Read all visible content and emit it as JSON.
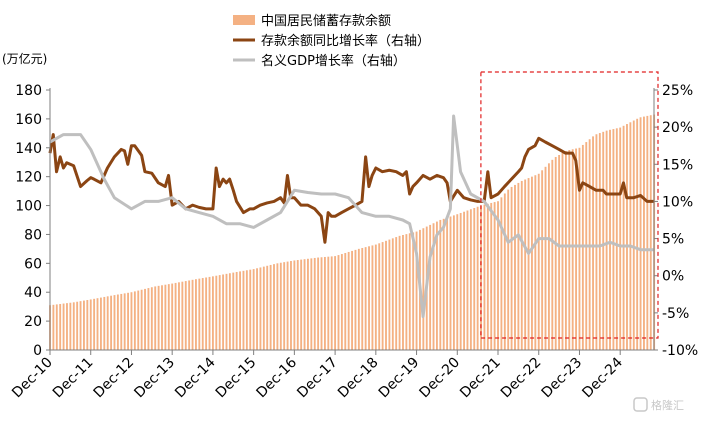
{
  "chart_data": {
    "type": "bar+line",
    "unit_left": "(万亿元)",
    "left_ticks": [
      0,
      20,
      40,
      60,
      80,
      100,
      120,
      140,
      160,
      180
    ],
    "right_ticks": [
      "-10%",
      "-5%",
      "0%",
      "5%",
      "10%",
      "15%",
      "20%",
      "25%"
    ],
    "right_tick_values": [
      -10,
      -5,
      0,
      5,
      10,
      15,
      20,
      25
    ],
    "ylim_left": [
      0,
      180
    ],
    "ylim_right": [
      -10,
      25
    ],
    "x_ticks": [
      "Dec-10",
      "Dec-11",
      "Dec-12",
      "Dec-13",
      "Dec-14",
      "Dec-15",
      "Dec-16",
      "Dec-17",
      "Dec-18",
      "Dec-19",
      "Dec-20",
      "Dec-21",
      "Dec-22",
      "Dec-23",
      "Dec-24"
    ],
    "x_range": [
      2010.92,
      2025.75
    ],
    "highlight_region": {
      "x_from": 2021.5,
      "x_to": 2025.75,
      "style": "red-dashed-box"
    },
    "legend_position": "top-center",
    "series": [
      {
        "name": "中国居民储蓄存款余额",
        "kind": "bar",
        "axis": "left",
        "color": "#f4b183",
        "points": [
          [
            2010.92,
            31
          ],
          [
            2011.5,
            33
          ],
          [
            2011.92,
            35
          ],
          [
            2012.5,
            38
          ],
          [
            2012.92,
            40
          ],
          [
            2013.5,
            44
          ],
          [
            2013.92,
            46
          ],
          [
            2014.5,
            49
          ],
          [
            2014.92,
            51
          ],
          [
            2015.5,
            54
          ],
          [
            2015.92,
            56
          ],
          [
            2016.5,
            60
          ],
          [
            2016.92,
            62
          ],
          [
            2017.5,
            64
          ],
          [
            2017.92,
            65
          ],
          [
            2018.5,
            70
          ],
          [
            2018.92,
            73
          ],
          [
            2019.5,
            79
          ],
          [
            2019.92,
            82
          ],
          [
            2020.5,
            90
          ],
          [
            2020.92,
            94
          ],
          [
            2021.5,
            100
          ],
          [
            2021.92,
            103
          ],
          [
            2022.2,
            112
          ],
          [
            2022.5,
            117
          ],
          [
            2022.92,
            122
          ],
          [
            2023.3,
            133
          ],
          [
            2023.6,
            138
          ],
          [
            2023.92,
            140
          ],
          [
            2024.3,
            149
          ],
          [
            2024.6,
            152
          ],
          [
            2024.92,
            154
          ],
          [
            2025.4,
            161
          ],
          [
            2025.75,
            163
          ]
        ]
      },
      {
        "name": "存款余额同比增长率（右轴）",
        "kind": "line",
        "axis": "right",
        "color": "#8b4513",
        "points": [
          [
            2010.92,
            16.5
          ],
          [
            2011.0,
            19.0
          ],
          [
            2011.08,
            14.0
          ],
          [
            2011.17,
            16.0
          ],
          [
            2011.25,
            14.5
          ],
          [
            2011.33,
            15.2
          ],
          [
            2011.5,
            14.8
          ],
          [
            2011.67,
            12.0
          ],
          [
            2011.83,
            12.8
          ],
          [
            2011.92,
            13.2
          ],
          [
            2012.0,
            13.0
          ],
          [
            2012.17,
            12.5
          ],
          [
            2012.33,
            14.5
          ],
          [
            2012.5,
            16.0
          ],
          [
            2012.67,
            17.0
          ],
          [
            2012.75,
            16.8
          ],
          [
            2012.83,
            15.0
          ],
          [
            2012.92,
            17.5
          ],
          [
            2013.0,
            17.5
          ],
          [
            2013.17,
            16.2
          ],
          [
            2013.25,
            14.0
          ],
          [
            2013.42,
            13.8
          ],
          [
            2013.58,
            12.5
          ],
          [
            2013.75,
            12.0
          ],
          [
            2013.83,
            13.5
          ],
          [
            2013.92,
            9.5
          ],
          [
            2014.08,
            10.0
          ],
          [
            2014.25,
            9.0
          ],
          [
            2014.42,
            9.5
          ],
          [
            2014.58,
            9.2
          ],
          [
            2014.75,
            9.0
          ],
          [
            2014.92,
            9.0
          ],
          [
            2015.0,
            14.5
          ],
          [
            2015.08,
            12.0
          ],
          [
            2015.17,
            13.0
          ],
          [
            2015.25,
            12.5
          ],
          [
            2015.33,
            13.0
          ],
          [
            2015.42,
            11.5
          ],
          [
            2015.5,
            10.0
          ],
          [
            2015.67,
            8.5
          ],
          [
            2015.83,
            9.0
          ],
          [
            2015.92,
            9.0
          ],
          [
            2016.08,
            9.5
          ],
          [
            2016.25,
            9.8
          ],
          [
            2016.42,
            10.0
          ],
          [
            2016.58,
            10.5
          ],
          [
            2016.67,
            9.8
          ],
          [
            2016.75,
            13.5
          ],
          [
            2016.83,
            10.5
          ],
          [
            2016.92,
            10.5
          ],
          [
            2017.08,
            9.5
          ],
          [
            2017.25,
            9.5
          ],
          [
            2017.42,
            9.0
          ],
          [
            2017.58,
            8.0
          ],
          [
            2017.67,
            4.5
          ],
          [
            2017.75,
            8.5
          ],
          [
            2017.83,
            8.0
          ],
          [
            2017.92,
            8.0
          ],
          [
            2018.08,
            8.5
          ],
          [
            2018.25,
            9.0
          ],
          [
            2018.42,
            9.5
          ],
          [
            2018.58,
            10.0
          ],
          [
            2018.67,
            16.0
          ],
          [
            2018.75,
            12.0
          ],
          [
            2018.83,
            13.5
          ],
          [
            2018.92,
            14.5
          ],
          [
            2019.08,
            14.0
          ],
          [
            2019.25,
            14.2
          ],
          [
            2019.42,
            14.0
          ],
          [
            2019.58,
            13.5
          ],
          [
            2019.67,
            14.0
          ],
          [
            2019.75,
            11.0
          ],
          [
            2019.83,
            12.0
          ],
          [
            2019.92,
            12.5
          ],
          [
            2020.08,
            13.5
          ],
          [
            2020.25,
            13.0
          ],
          [
            2020.42,
            13.5
          ],
          [
            2020.58,
            13.2
          ],
          [
            2020.67,
            12.5
          ],
          [
            2020.75,
            10.0
          ],
          [
            2020.92,
            11.5
          ],
          [
            2021.08,
            10.5
          ],
          [
            2021.25,
            10.2
          ],
          [
            2021.42,
            10.0
          ],
          [
            2021.5,
            10.0
          ],
          [
            2021.58,
            10.0
          ],
          [
            2021.67,
            14.0
          ],
          [
            2021.75,
            10.5
          ],
          [
            2021.92,
            11.0
          ],
          [
            2022.08,
            12.0
          ],
          [
            2022.25,
            13.0
          ],
          [
            2022.42,
            14.0
          ],
          [
            2022.5,
            14.5
          ],
          [
            2022.58,
            16.0
          ],
          [
            2022.67,
            17.0
          ],
          [
            2022.83,
            17.5
          ],
          [
            2022.92,
            18.5
          ],
          [
            2023.08,
            18.0
          ],
          [
            2023.25,
            17.5
          ],
          [
            2023.42,
            17.0
          ],
          [
            2023.58,
            16.5
          ],
          [
            2023.75,
            16.5
          ],
          [
            2023.83,
            15.5
          ],
          [
            2023.92,
            11.5
          ],
          [
            2024.0,
            12.5
          ],
          [
            2024.17,
            12.0
          ],
          [
            2024.33,
            11.5
          ],
          [
            2024.5,
            11.5
          ],
          [
            2024.58,
            11.0
          ],
          [
            2024.75,
            11.0
          ],
          [
            2024.92,
            11.0
          ],
          [
            2025.0,
            12.5
          ],
          [
            2025.08,
            10.5
          ],
          [
            2025.25,
            10.5
          ],
          [
            2025.42,
            10.8
          ],
          [
            2025.58,
            10.0
          ],
          [
            2025.75,
            10.0
          ]
        ]
      },
      {
        "name": "名义GDP增长率（右轴）",
        "kind": "line",
        "axis": "right",
        "color": "#bfbfbf",
        "points": [
          [
            2010.92,
            18.0
          ],
          [
            2011.25,
            19.0
          ],
          [
            2011.67,
            19.0
          ],
          [
            2011.92,
            17.0
          ],
          [
            2012.25,
            13.0
          ],
          [
            2012.5,
            10.5
          ],
          [
            2012.92,
            9.0
          ],
          [
            2013.25,
            10.0
          ],
          [
            2013.58,
            10.0
          ],
          [
            2013.92,
            10.5
          ],
          [
            2014.25,
            9.0
          ],
          [
            2014.58,
            8.5
          ],
          [
            2014.92,
            8.0
          ],
          [
            2015.25,
            7.0
          ],
          [
            2015.58,
            7.0
          ],
          [
            2015.92,
            6.5
          ],
          [
            2016.25,
            7.5
          ],
          [
            2016.58,
            8.5
          ],
          [
            2016.92,
            11.5
          ],
          [
            2017.25,
            11.2
          ],
          [
            2017.58,
            11.0
          ],
          [
            2017.92,
            11.0
          ],
          [
            2018.25,
            10.5
          ],
          [
            2018.58,
            8.5
          ],
          [
            2018.92,
            8.0
          ],
          [
            2019.25,
            8.0
          ],
          [
            2019.58,
            7.5
          ],
          [
            2019.75,
            7.0
          ],
          [
            2019.92,
            3.0
          ],
          [
            2020.08,
            -5.5
          ],
          [
            2020.25,
            2.5
          ],
          [
            2020.42,
            5.5
          ],
          [
            2020.58,
            6.5
          ],
          [
            2020.75,
            9.0
          ],
          [
            2020.83,
            21.5
          ],
          [
            2021.0,
            14.0
          ],
          [
            2021.25,
            11.0
          ],
          [
            2021.58,
            10.0
          ],
          [
            2021.92,
            7.5
          ],
          [
            2022.17,
            4.5
          ],
          [
            2022.42,
            5.5
          ],
          [
            2022.67,
            3.0
          ],
          [
            2022.92,
            5.0
          ],
          [
            2023.17,
            5.0
          ],
          [
            2023.42,
            4.0
          ],
          [
            2023.67,
            4.0
          ],
          [
            2023.92,
            4.0
          ],
          [
            2024.17,
            4.0
          ],
          [
            2024.42,
            4.0
          ],
          [
            2024.67,
            4.5
          ],
          [
            2024.92,
            4.0
          ],
          [
            2025.17,
            4.0
          ],
          [
            2025.42,
            3.5
          ],
          [
            2025.75,
            3.5
          ]
        ]
      }
    ]
  },
  "watermark": {
    "text": "格隆汇",
    "icon": "watermark-logo-icon"
  }
}
